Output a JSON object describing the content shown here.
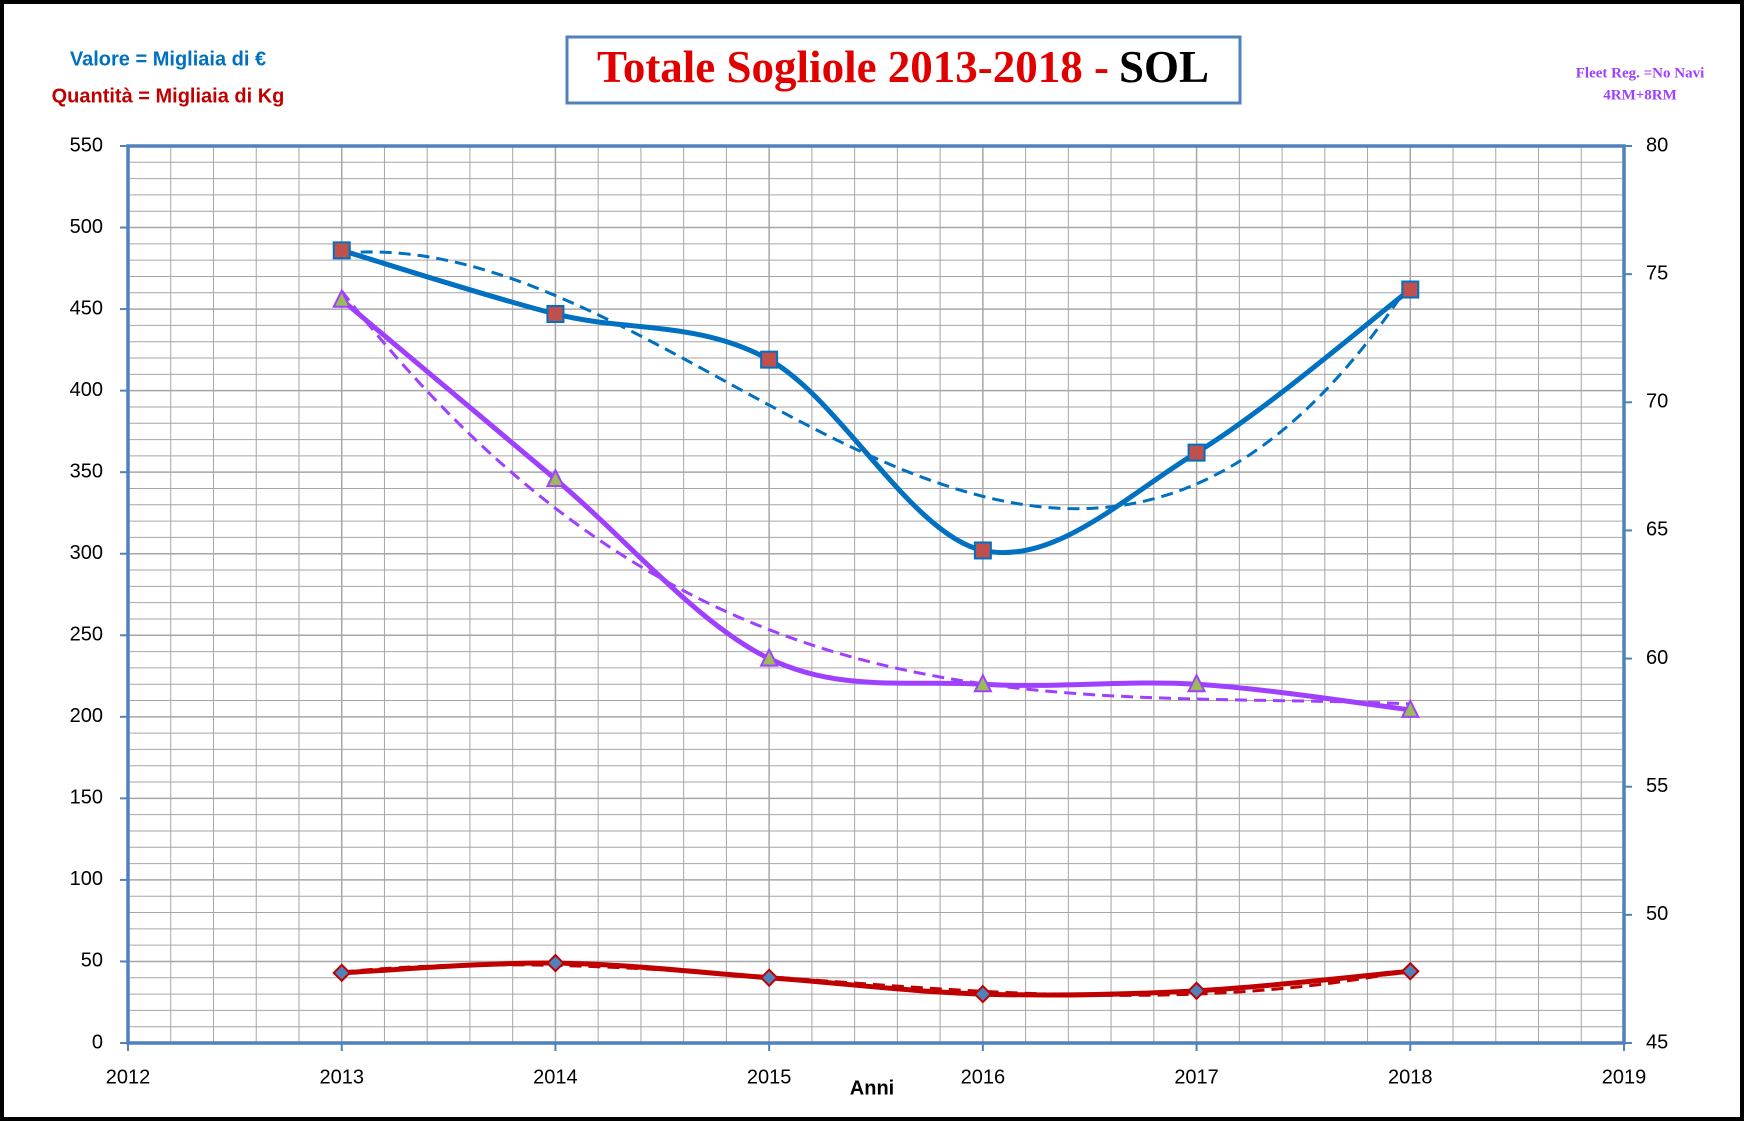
{
  "chart_data": {
    "type": "line",
    "title": "Totale Sogliole 2013-2018 -",
    "title_suffix": "SOL",
    "xlabel": "Anni",
    "annotation": "4RM+8RM",
    "x": [
      2013,
      2014,
      2015,
      2016,
      2017,
      2018
    ],
    "series": [
      {
        "name": "Valore = Migliaia di €",
        "color": "#0070c0",
        "marker": "square",
        "marker_color": "#c0504d",
        "values": [
          486,
          447,
          419,
          302,
          362,
          462
        ]
      },
      {
        "name": "Quantità = Migliaia di Kg",
        "color": "#c00000",
        "marker": "diamond",
        "marker_color": "#4f81bd",
        "values": [
          43,
          49,
          40,
          30,
          32,
          44
        ]
      },
      {
        "name": "Fleet Reg. =No Navi",
        "color": "#a040ff",
        "marker": "triangle",
        "marker_color": "#9bbb59",
        "axis": "y2",
        "values": [
          74,
          67,
          60,
          59,
          59,
          58
        ]
      }
    ],
    "xlim": [
      2012,
      2019
    ],
    "xticks": [
      2012,
      2013,
      2014,
      2015,
      2016,
      2017,
      2018,
      2019
    ],
    "ylim": [
      0,
      550
    ],
    "yticks": [
      0,
      50,
      100,
      150,
      200,
      250,
      300,
      350,
      400,
      450,
      500,
      550
    ],
    "y2lim": [
      45,
      80
    ],
    "y2ticks": [
      45,
      50,
      55,
      60,
      65,
      70,
      75,
      80
    ],
    "grid": true,
    "trendline_order": 3
  }
}
